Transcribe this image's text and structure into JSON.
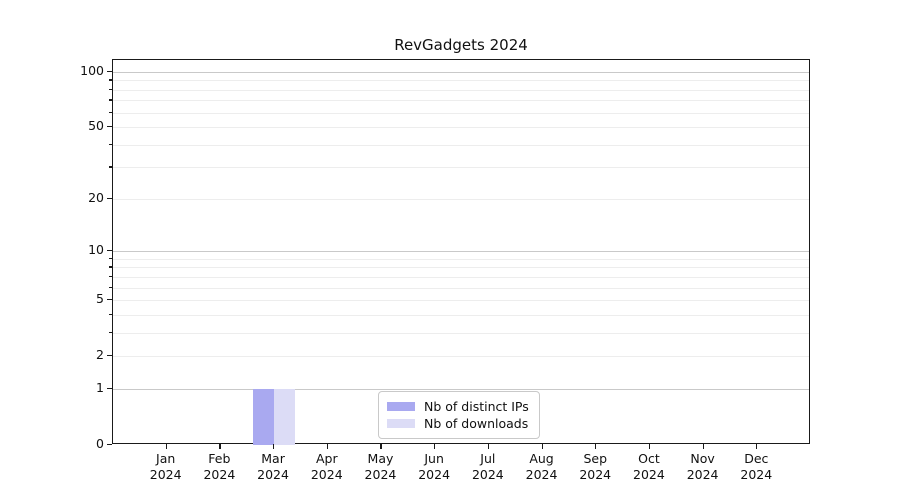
{
  "title": "RevGadgets 2024",
  "chart_data": {
    "type": "bar",
    "title": "RevGadgets 2024",
    "xlabel": "",
    "ylabel": "",
    "categories": [
      "Jan 2024",
      "Feb 2024",
      "Mar 2024",
      "Apr 2024",
      "May 2024",
      "Jun 2024",
      "Jul 2024",
      "Aug 2024",
      "Sep 2024",
      "Oct 2024",
      "Nov 2024",
      "Dec 2024"
    ],
    "series": [
      {
        "name": "Nb of distinct IPs",
        "color": "#a9a9f0",
        "values": [
          0,
          0,
          1,
          0,
          0,
          0,
          0,
          0,
          0,
          0,
          0,
          0
        ]
      },
      {
        "name": "Nb of downloads",
        "color": "#dcdcf6",
        "values": [
          0,
          0,
          1,
          0,
          0,
          0,
          0,
          0,
          0,
          0,
          0,
          0
        ]
      }
    ],
    "yscale": "log1p",
    "ylim": [
      0,
      116
    ],
    "ytick_labels": [
      0,
      1,
      2,
      5,
      10,
      20,
      50,
      100
    ],
    "ytick_minor": [
      3,
      4,
      6,
      7,
      8,
      9,
      30,
      40,
      60,
      70,
      80,
      90
    ],
    "grid_major": [
      1,
      10,
      100
    ],
    "grid_minor": [
      2,
      3,
      4,
      5,
      6,
      7,
      8,
      9,
      20,
      30,
      40,
      50,
      60,
      70,
      80,
      90
    ],
    "grid": true,
    "legend_position": "lower center"
  },
  "legend": {
    "items": [
      {
        "label": "Nb of distinct IPs",
        "color": "#a9a9f0"
      },
      {
        "label": "Nb of downloads",
        "color": "#dcdcf6"
      }
    ]
  },
  "colors": {
    "spine": "#1a1a1a",
    "grid_major": "#c9c9c9",
    "grid_minor": "#ededed",
    "background": "#ffffff",
    "text": "#111111",
    "legend_border": "#c9c9c9"
  }
}
